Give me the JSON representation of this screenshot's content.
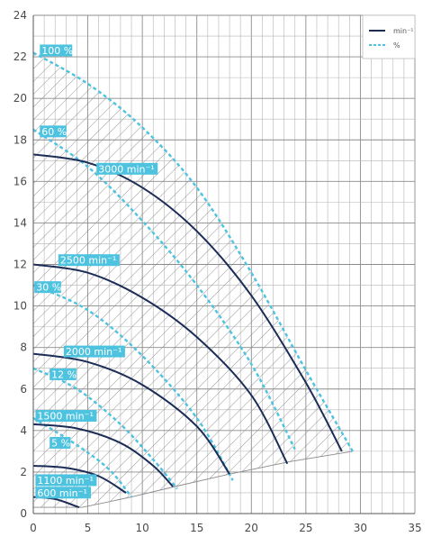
{
  "chart_data": {
    "type": "line",
    "xlim": [
      0,
      35
    ],
    "ylim": [
      0,
      24
    ],
    "xticks": [
      0,
      5,
      10,
      15,
      20,
      25,
      30,
      35
    ],
    "yticks": [
      0,
      2,
      4,
      6,
      8,
      10,
      12,
      14,
      16,
      18,
      20,
      22,
      24
    ],
    "minor_x": 1,
    "minor_y": 1,
    "grid": true,
    "legend_position": "top-right",
    "legend": [
      {
        "label": "min⁻¹",
        "style": "solid",
        "color": "#1b2c57"
      },
      {
        "label": "%",
        "style": "dotted",
        "color": "#4ec3e0"
      }
    ],
    "colors": {
      "speed": "#1b2c57",
      "percent": "#4ec3e0",
      "label_bg": "#4ec3e0",
      "hatch": "#8a8a8a"
    },
    "speed_curves": [
      {
        "label": "3000 min⁻¹",
        "points": [
          [
            0,
            17.3
          ],
          [
            5,
            16.9
          ],
          [
            10,
            15.7
          ],
          [
            15,
            13.6
          ],
          [
            20,
            10.5
          ],
          [
            25,
            6.3
          ],
          [
            28.3,
            3.0
          ]
        ]
      },
      {
        "label": "2500 min⁻¹",
        "points": [
          [
            0,
            12.0
          ],
          [
            5,
            11.6
          ],
          [
            10,
            10.4
          ],
          [
            15,
            8.5
          ],
          [
            20,
            5.7
          ],
          [
            23.3,
            2.4
          ]
        ]
      },
      {
        "label": "2000 min⁻¹",
        "points": [
          [
            0,
            7.7
          ],
          [
            5,
            7.3
          ],
          [
            10,
            6.2
          ],
          [
            15,
            4.2
          ],
          [
            18,
            1.9
          ]
        ]
      },
      {
        "label": "1500 min⁻¹",
        "points": [
          [
            0,
            4.3
          ],
          [
            4,
            4.1
          ],
          [
            8,
            3.4
          ],
          [
            11,
            2.3
          ],
          [
            12.8,
            1.3
          ]
        ]
      },
      {
        "label": "1100 min⁻¹",
        "points": [
          [
            0,
            2.3
          ],
          [
            3,
            2.2
          ],
          [
            6,
            1.8
          ],
          [
            8.5,
            1.0
          ]
        ]
      },
      {
        "label": "600 min⁻¹",
        "points": [
          [
            0,
            0.8
          ],
          [
            2,
            0.7
          ],
          [
            4.2,
            0.3
          ]
        ]
      }
    ],
    "percent_curves": [
      {
        "label": "100 %",
        "points": [
          [
            0,
            22.2
          ],
          [
            5,
            20.7
          ],
          [
            10,
            18.6
          ],
          [
            15,
            15.7
          ],
          [
            20,
            11.6
          ],
          [
            25,
            6.9
          ],
          [
            29.3,
            3.0
          ]
        ]
      },
      {
        "label": "60 %",
        "points": [
          [
            0,
            18.5
          ],
          [
            5,
            16.7
          ],
          [
            10,
            14.1
          ],
          [
            15,
            11.0
          ],
          [
            20,
            7.2
          ],
          [
            24,
            3.1
          ]
        ]
      },
      {
        "label": "30 %",
        "points": [
          [
            0,
            11.0
          ],
          [
            5,
            9.8
          ],
          [
            10,
            7.6
          ],
          [
            15,
            4.6
          ],
          [
            18.3,
            1.6
          ]
        ]
      },
      {
        "label": "12 %",
        "points": [
          [
            0,
            7.0
          ],
          [
            4,
            6.0
          ],
          [
            8,
            4.3
          ],
          [
            11,
            2.6
          ],
          [
            13.2,
            1.2
          ]
        ]
      },
      {
        "label": "5 %",
        "points": [
          [
            0,
            4.6
          ],
          [
            4,
            3.3
          ],
          [
            7,
            2.1
          ],
          [
            9,
            0.8
          ]
        ]
      }
    ],
    "envelope_bottom": [
      [
        0,
        0.3
      ],
      [
        4.5,
        0.3
      ],
      [
        9,
        0.8
      ],
      [
        13,
        1.3
      ],
      [
        18,
        1.9
      ],
      [
        23.5,
        2.5
      ],
      [
        29.3,
        3.0
      ]
    ]
  }
}
